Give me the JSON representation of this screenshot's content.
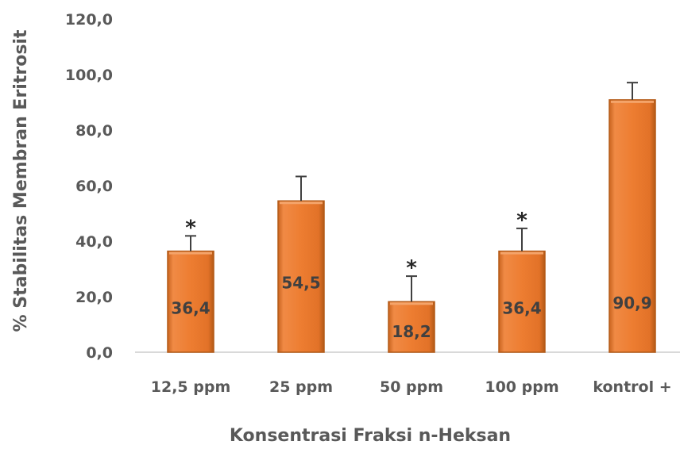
{
  "chart_data": {
    "type": "bar",
    "title": "",
    "xlabel": "Konsentrasi Fraksi n-Heksan",
    "ylabel": "% Stabilitas Membran Eritrosit",
    "categories": [
      "12,5 ppm",
      "25 ppm",
      "50 ppm",
      "100 ppm",
      "kontrol +"
    ],
    "values": [
      36.4,
      54.5,
      18.2,
      36.4,
      90.9
    ],
    "data_labels": [
      "36,4",
      "54,5",
      "18,2",
      "36,4",
      "90,9"
    ],
    "error_plus": [
      5.5,
      8.8,
      9.2,
      8.2,
      6.2
    ],
    "significance": [
      "*",
      "",
      "*",
      "*",
      ""
    ],
    "ylim": [
      0,
      120
    ],
    "yticks": [
      0,
      20,
      40,
      60,
      80,
      100,
      120
    ],
    "ytick_labels": [
      "0,0",
      "20,0",
      "40,0",
      "60,0",
      "80,0",
      "100,0",
      "120,0"
    ],
    "grid": false,
    "legend": "none",
    "colors": {
      "bar_fill": "#ED7D31",
      "bar_edge": "#B45A17",
      "bar_highlight": "#F4A46A",
      "error_bar": "#404040",
      "axis_line": "#D9D9D9"
    }
  }
}
